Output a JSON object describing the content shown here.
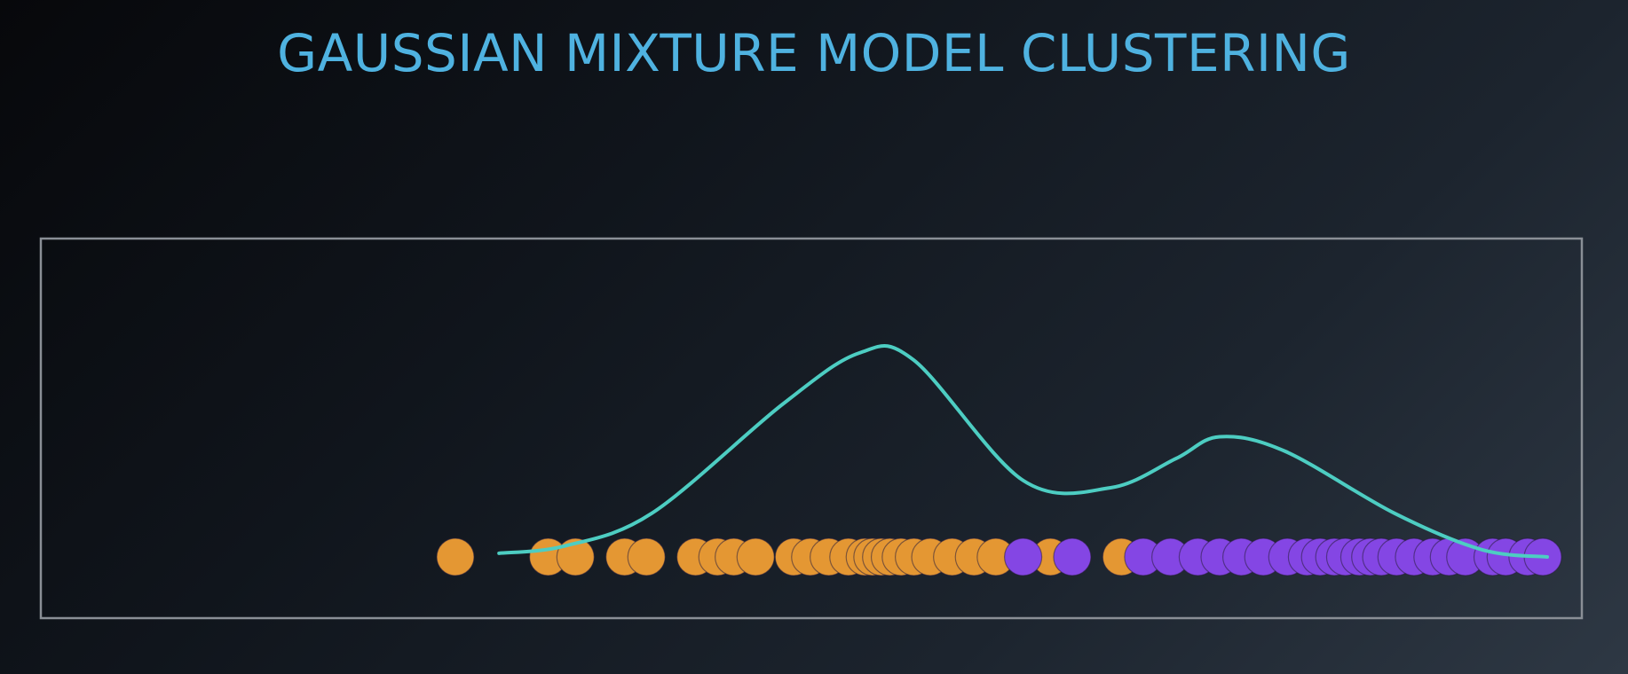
{
  "title": "GAUSSIAN MIXTURE MODEL CLUSTERING",
  "colors": {
    "title": "#4fb2e0",
    "box": "#8a8f96",
    "curve": "#4dcdc2",
    "cluster_a": "#e49733",
    "cluster_b": "#8446e4",
    "point_stroke": "#3a2a55"
  },
  "chart_data": {
    "type": "scatter",
    "title": "",
    "xlabel": "",
    "ylabel": "",
    "xlim": [
      0,
      1
    ],
    "ylim": [
      0,
      1
    ],
    "curve": {
      "description_points": [
        [
          0.04,
          0.01
        ],
        [
          0.1,
          0.03
        ],
        [
          0.18,
          0.12
        ],
        [
          0.3,
          0.42
        ],
        [
          0.37,
          0.56
        ],
        [
          0.42,
          0.54
        ],
        [
          0.52,
          0.21
        ],
        [
          0.6,
          0.19
        ],
        [
          0.66,
          0.27
        ],
        [
          0.7,
          0.33
        ],
        [
          0.76,
          0.29
        ],
        [
          0.86,
          0.12
        ],
        [
          0.94,
          0.02
        ],
        [
          1.0,
          0.0
        ]
      ]
    },
    "series": [
      {
        "name": "",
        "color_key": "cluster_a",
        "x": [
          0.0,
          0.085,
          0.11,
          0.155,
          0.175,
          0.22,
          0.24,
          0.255,
          0.275,
          0.31,
          0.325,
          0.342,
          0.36,
          0.375,
          0.382,
          0.39,
          0.398,
          0.408,
          0.42,
          0.435,
          0.455,
          0.475,
          0.495,
          0.545,
          0.61
        ]
      },
      {
        "name": "",
        "color_key": "cluster_b",
        "x": [
          0.52,
          0.565,
          0.63,
          0.655,
          0.68,
          0.7,
          0.72,
          0.74,
          0.762,
          0.78,
          0.792,
          0.805,
          0.815,
          0.828,
          0.838,
          0.848,
          0.862,
          0.878,
          0.895,
          0.91,
          0.925,
          0.95,
          0.962,
          0.982,
          0.996
        ]
      }
    ]
  }
}
